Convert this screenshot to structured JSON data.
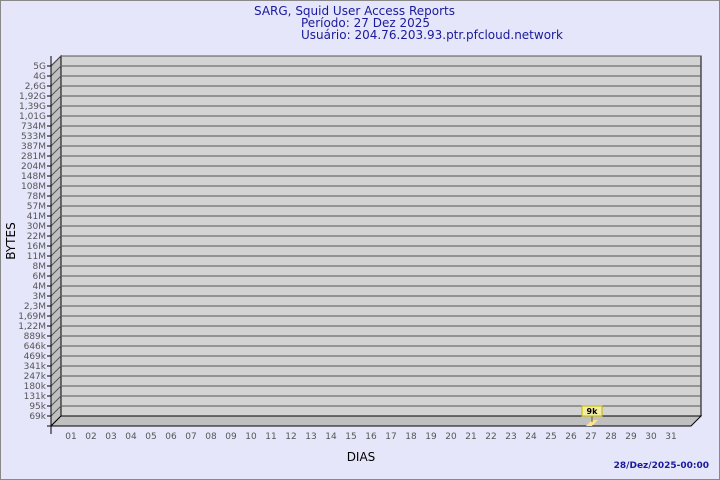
{
  "header": {
    "title": "SARG, Squid User Access Reports",
    "period": "Período: 27 Dez 2025",
    "user": "Usuário: 204.76.203.93.ptr.pfcloud.network"
  },
  "footer": {
    "timestamp": "28/Dez/2025-00:00"
  },
  "chart_data": {
    "type": "bar",
    "xlabel": "DIAS",
    "ylabel": "BYTES",
    "categories": [
      "01",
      "02",
      "03",
      "04",
      "05",
      "06",
      "07",
      "08",
      "09",
      "10",
      "11",
      "12",
      "13",
      "14",
      "15",
      "16",
      "17",
      "18",
      "19",
      "20",
      "21",
      "22",
      "23",
      "24",
      "25",
      "26",
      "27",
      "28",
      "29",
      "30",
      "31"
    ],
    "yticks": [
      "5G",
      "4G",
      "2,6G",
      "1,92G",
      "1,39G",
      "1,01G",
      "734M",
      "533M",
      "387M",
      "281M",
      "204M",
      "148M",
      "108M",
      "78M",
      "57M",
      "41M",
      "30M",
      "22M",
      "16M",
      "11M",
      "8M",
      "6M",
      "4M",
      "3M",
      "2,3M",
      "1,69M",
      "1,22M",
      "889k",
      "646k",
      "469k",
      "341k",
      "247k",
      "180k",
      "131k",
      "95k",
      "69k"
    ],
    "yscale": "log",
    "grid": true,
    "series": [
      {
        "values": [
          null,
          null,
          null,
          null,
          null,
          null,
          null,
          null,
          null,
          null,
          null,
          null,
          null,
          null,
          null,
          null,
          null,
          null,
          null,
          null,
          null,
          null,
          null,
          null,
          null,
          null,
          9000,
          null,
          null,
          null,
          null
        ],
        "labels": {
          "27": "9k"
        }
      }
    ],
    "colors": {
      "wall": "#d3d3d3",
      "side": "#c0c0c0",
      "bar": "#ffe38a",
      "label_bg": "#f2eea0",
      "text": "#1a1a9c"
    }
  }
}
